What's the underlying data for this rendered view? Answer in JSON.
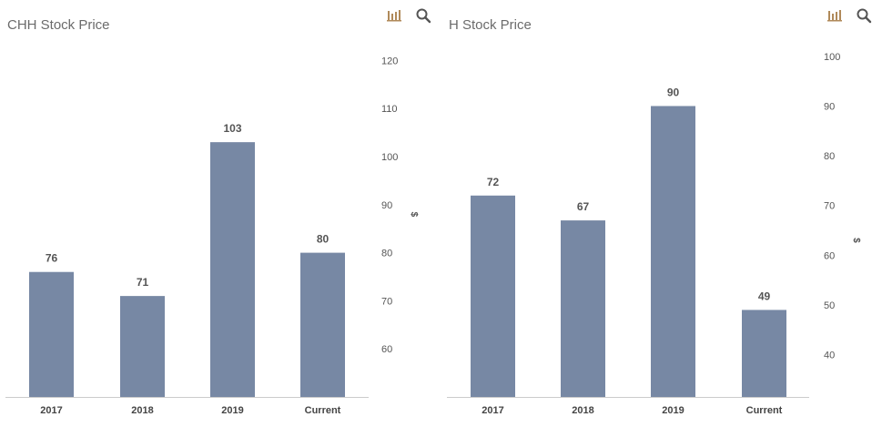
{
  "chart_data": [
    {
      "type": "bar",
      "title": "CHH Stock Price",
      "categories": [
        "2017",
        "2018",
        "2019",
        "Current"
      ],
      "values": [
        76,
        71,
        103,
        80
      ],
      "ylabel": "$",
      "yticks": [
        60,
        70,
        80,
        90,
        100,
        110,
        120
      ],
      "ylim": [
        50,
        125
      ],
      "bar_color": "#7788a4",
      "axis_side": "right",
      "grid": false
    },
    {
      "type": "bar",
      "title": "H Stock Price",
      "categories": [
        "2017",
        "2018",
        "2019",
        "Current"
      ],
      "values": [
        72,
        67,
        90,
        49
      ],
      "ylabel": "$",
      "yticks": [
        40,
        50,
        60,
        70,
        80,
        90,
        100
      ],
      "ylim": [
        31.5,
        104
      ],
      "bar_color": "#7788a4",
      "axis_side": "right",
      "grid": false
    }
  ],
  "toolbar": {
    "chart_icon": "bar-chart-icon",
    "search_icon": "search-icon",
    "icon_color": "#b08a5a",
    "search_color": "#555555"
  }
}
